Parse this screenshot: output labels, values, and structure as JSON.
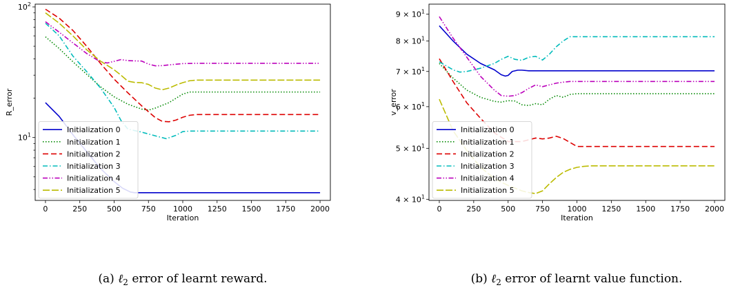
{
  "chart_data": [
    {
      "type": "line",
      "scale_y": "log",
      "caption_label": "(a)",
      "caption_var": "ℓ",
      "caption_sub": "2",
      "caption_rest": "error of learnt reward.",
      "xlabel": "Iteration",
      "ylabel": "R_error",
      "xlim": [
        -75,
        2075
      ],
      "ylim": [
        3.3,
        105
      ],
      "xticks": [
        0,
        250,
        500,
        750,
        1000,
        1250,
        1500,
        1750,
        2000
      ],
      "yticks": [
        {
          "value": 10,
          "base": "10",
          "exp": "1"
        },
        {
          "value": 100,
          "base": "10",
          "exp": "2"
        }
      ],
      "legend": "lower-left",
      "series": [
        {
          "name": "Initialization 0",
          "color": "#0000cc",
          "dash": "solid",
          "x": [
            0,
            100,
            200,
            300,
            400,
            500,
            560,
            620,
            650,
            700,
            800,
            1000,
            1500,
            2000
          ],
          "y": [
            18.5,
            14.5,
            10.5,
            7.8,
            5.8,
            4.6,
            4.1,
            3.82,
            3.78,
            3.78,
            3.78,
            3.78,
            3.78,
            3.78
          ]
        },
        {
          "name": "Initialization 1",
          "color": "#008800",
          "dash": "dot",
          "x": [
            0,
            100,
            200,
            300,
            400,
            500,
            600,
            700,
            750,
            800,
            900,
            1000,
            1050,
            1500,
            2000
          ],
          "y": [
            59,
            48,
            38,
            30.5,
            24.5,
            20.5,
            18,
            16.5,
            16.2,
            16.8,
            18.5,
            21.5,
            22.3,
            22.3,
            22.3
          ]
        },
        {
          "name": "Initialization 2",
          "color": "#dd0000",
          "dash": "dash",
          "x": [
            0,
            100,
            200,
            300,
            400,
            500,
            600,
            700,
            800,
            850,
            900,
            950,
            1000,
            1050,
            1100,
            1500,
            2000
          ],
          "y": [
            96,
            82,
            66,
            50,
            37,
            28,
            22,
            17.5,
            14.2,
            13.3,
            13.2,
            13.6,
            14.3,
            14.8,
            15,
            15,
            15
          ]
        },
        {
          "name": "Initialization 3",
          "color": "#00bbbb",
          "dash": "dashdot",
          "x": [
            0,
            100,
            200,
            300,
            400,
            500,
            550,
            600,
            700,
            800,
            880,
            950,
            1000,
            1050,
            1100,
            1500,
            2000
          ],
          "y": [
            75,
            60,
            42,
            32,
            24,
            17,
            13.5,
            11.6,
            11,
            10.3,
            9.8,
            10.4,
            11.1,
            11.2,
            11.2,
            11.2,
            11.2
          ]
        },
        {
          "name": "Initialization 4",
          "color": "#bb00bb",
          "dash": "dashdotdot",
          "x": [
            0,
            100,
            200,
            300,
            400,
            450,
            500,
            550,
            600,
            650,
            700,
            750,
            800,
            850,
            900,
            1000,
            1100,
            1500,
            2000
          ],
          "y": [
            77,
            64,
            53,
            44,
            38,
            37.2,
            38.3,
            39.5,
            38.8,
            38.6,
            38.5,
            36.5,
            35.4,
            35.5,
            36,
            36.8,
            37,
            37,
            37
          ]
        },
        {
          "name": "Initialization 5",
          "color": "#bbbb00",
          "dash": "longdash",
          "x": [
            0,
            100,
            200,
            300,
            400,
            500,
            550,
            600,
            650,
            700,
            750,
            800,
            850,
            900,
            950,
            1000,
            1050,
            1100,
            1500,
            2000
          ],
          "y": [
            90,
            75,
            60,
            47,
            38.5,
            33,
            30,
            27,
            26.4,
            26.3,
            25.5,
            23.9,
            23.2,
            23.9,
            25.2,
            26.3,
            27.2,
            27.5,
            27.5,
            27.5
          ]
        }
      ]
    },
    {
      "type": "line",
      "scale_y": "log",
      "caption_label": "(b)",
      "caption_var": "ℓ",
      "caption_sub": "2",
      "caption_rest": "error of learnt value function.",
      "xlabel": "Iteration",
      "ylabel": "v_error",
      "xlim": [
        -75,
        2075
      ],
      "ylim": [
        39.8,
        94
      ],
      "xticks": [
        0,
        250,
        500,
        750,
        1000,
        1250,
        1500,
        1750,
        2000
      ],
      "yticks": [
        {
          "value": 40,
          "base": "4 × 10",
          "exp": "1"
        },
        {
          "value": 50,
          "base": "5 × 10",
          "exp": "1"
        },
        {
          "value": 60,
          "base": "6 × 10",
          "exp": "1"
        },
        {
          "value": 70,
          "base": "7 × 10",
          "exp": "1"
        },
        {
          "value": 80,
          "base": "8 × 10",
          "exp": "1"
        },
        {
          "value": 90,
          "base": "9 × 10",
          "exp": "1"
        }
      ],
      "legend": "lower-left",
      "series": [
        {
          "name": "Initialization 0",
          "color": "#0000cc",
          "dash": "solid",
          "x": [
            0,
            100,
            200,
            300,
            400,
            450,
            480,
            500,
            530,
            570,
            600,
            650,
            700,
            800,
            1000,
            1500,
            2000
          ],
          "y": [
            85.5,
            80,
            75.5,
            72.5,
            70.5,
            69,
            68.6,
            68.8,
            70,
            70.4,
            70.4,
            70.2,
            70.2,
            70.2,
            70.2,
            70.2,
            70.2
          ]
        },
        {
          "name": "Initialization 1",
          "color": "#008800",
          "dash": "dot",
          "x": [
            0,
            100,
            200,
            300,
            400,
            450,
            500,
            550,
            600,
            650,
            700,
            750,
            800,
            850,
            900,
            950,
            1000,
            1500,
            2000
          ],
          "y": [
            72.5,
            68,
            64.5,
            62.5,
            61.4,
            61.2,
            61.6,
            61.5,
            60.5,
            60.3,
            60.8,
            60.5,
            62,
            63,
            62.5,
            63.3,
            63.5,
            63.5,
            63.5
          ]
        },
        {
          "name": "Initialization 2",
          "color": "#dd0000",
          "dash": "dash",
          "x": [
            0,
            100,
            200,
            300,
            400,
            500,
            600,
            700,
            750,
            800,
            850,
            900,
            950,
            1000,
            1050,
            1500,
            2000
          ],
          "y": [
            74,
            67,
            61,
            57,
            53.5,
            51.5,
            51.5,
            52.3,
            52.1,
            52.3,
            52.7,
            52.2,
            51.3,
            50.4,
            50.4,
            50.4,
            50.4
          ]
        },
        {
          "name": "Initialization 3",
          "color": "#00bbbb",
          "dash": "dashdot",
          "x": [
            0,
            100,
            150,
            200,
            300,
            400,
            450,
            500,
            550,
            600,
            650,
            700,
            750,
            800,
            850,
            900,
            950,
            1000,
            1500,
            2000
          ],
          "y": [
            73,
            70.5,
            69.8,
            70,
            71,
            72.5,
            73.8,
            74.8,
            73.8,
            73.5,
            74.5,
            74.8,
            73.6,
            75.5,
            78,
            80,
            81.5,
            81.5,
            81.5,
            81.5
          ]
        },
        {
          "name": "Initialization 4",
          "color": "#bb00bb",
          "dash": "dashdotdot",
          "x": [
            0,
            100,
            200,
            300,
            400,
            450,
            500,
            550,
            600,
            650,
            700,
            750,
            800,
            850,
            900,
            950,
            1000,
            1500,
            2000
          ],
          "y": [
            89,
            81,
            74.5,
            68.5,
            64.5,
            63,
            62.8,
            63,
            63.8,
            65,
            66,
            65.5,
            66,
            66.5,
            66.8,
            67,
            67,
            67,
            67
          ]
        },
        {
          "name": "Initialization 5",
          "color": "#bbbb00",
          "dash": "longdash",
          "x": [
            0,
            100,
            200,
            300,
            400,
            500,
            600,
            650,
            700,
            750,
            800,
            850,
            900,
            950,
            1000,
            1050,
            1100,
            1500,
            2000
          ],
          "y": [
            62,
            54,
            49.5,
            46,
            43.8,
            42.5,
            41.5,
            41.2,
            41,
            41.5,
            42.8,
            44,
            45,
            45.6,
            46,
            46.2,
            46.3,
            46.3,
            46.3
          ]
        }
      ]
    }
  ]
}
